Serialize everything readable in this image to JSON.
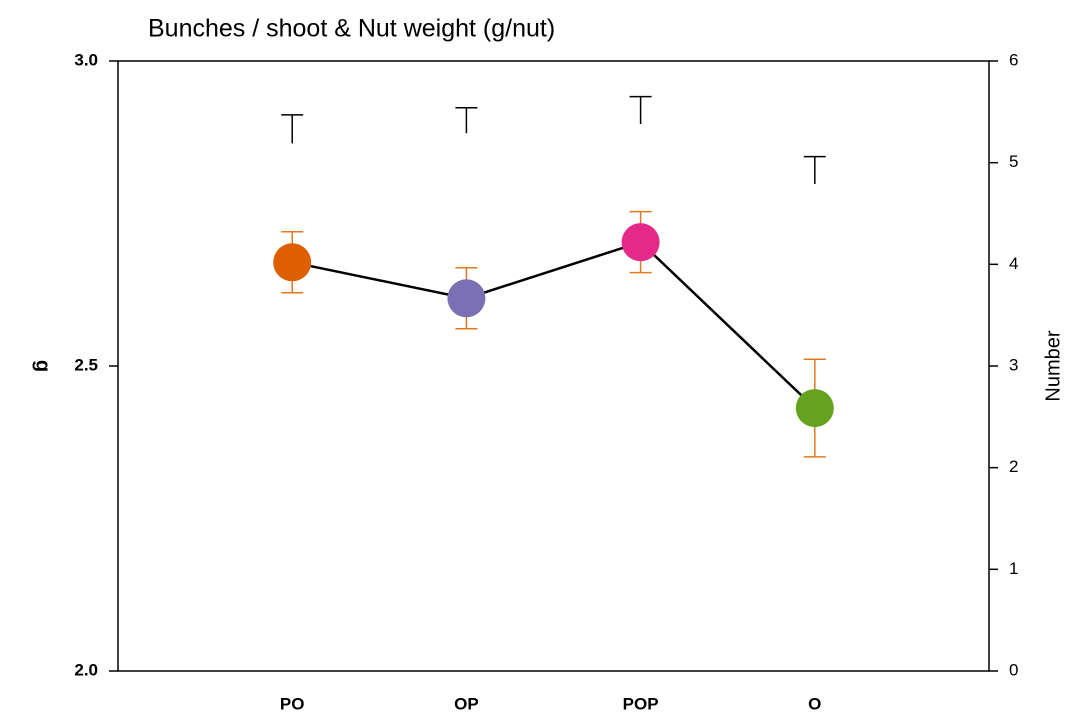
{
  "chart_data": {
    "type": "line",
    "title": "Bunches / shoot & Nut weight (g/nut)",
    "y_label": "g",
    "y2_label": "Number",
    "categories": [
      "PO",
      "OP",
      "POP",
      "O"
    ],
    "ylim": [
      2.0,
      3.0
    ],
    "yticks": [
      {
        "value": 2.0,
        "label": "2.0"
      },
      2.5,
      {
        "value": 3.0,
        "label": "3.0"
      }
    ],
    "y2lim": [
      0,
      6
    ],
    "y2ticks": [
      0,
      1,
      2,
      3,
      4,
      5,
      6
    ],
    "series": [
      {
        "axis": "y",
        "values": [
          2.67,
          2.611,
          2.703,
          2.431
        ],
        "errors": [
          0.05,
          0.05,
          0.05,
          0.08
        ],
        "colors": [
          "#dd5f00",
          "#7a70b3",
          "#e5298a",
          "#64a21f"
        ],
        "line_color": "#000000",
        "error_color": "#e07a1f",
        "error_side": "both",
        "markers": true
      },
      {
        "axis": "y2",
        "values": [
          5.19,
          5.29,
          5.38,
          4.79
        ],
        "errors": [
          0.28,
          0.25,
          0.27,
          0.27
        ],
        "error_color": "#000000",
        "error_side": "upper",
        "markers": false
      }
    ]
  }
}
